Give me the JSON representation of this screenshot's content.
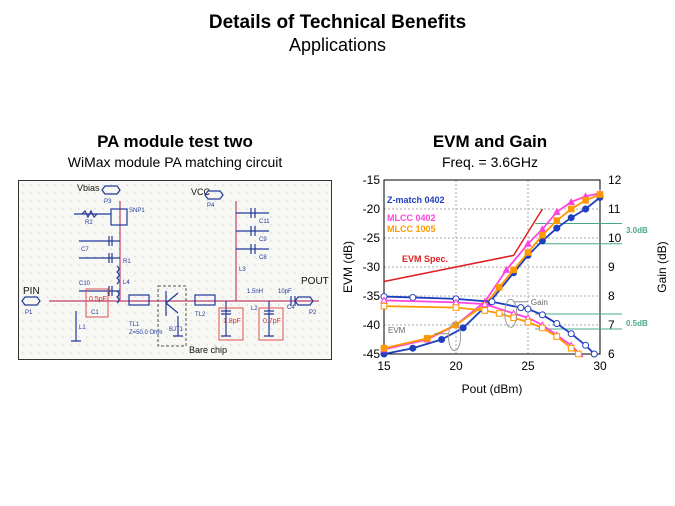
{
  "slide": {
    "title": "Details of Technical Benefits",
    "subtitle": "Applications"
  },
  "left": {
    "title": "PA module test two",
    "subtitle": "WiMax module PA matching circuit",
    "circuit": {
      "vbias": "Vbias",
      "vcc": "VCC",
      "pin": "PIN",
      "pout": "POUT",
      "bare_chip": "Bare chip",
      "highlighted": [
        "0.5pF",
        "1.8pF",
        "0.7pF"
      ],
      "inductor": "1.5nH",
      "cap_out": "10pF",
      "labels": [
        "P1",
        "P2",
        "P3",
        "P4",
        "R1",
        "R2",
        "L1",
        "L2",
        "L3",
        "L4",
        "C1",
        "C4",
        "C7",
        "C8",
        "C9",
        "C10",
        "C11",
        "TL1",
        "TL2",
        "Z=50.0 Ohm",
        "SNP1",
        "BJT1"
      ]
    }
  },
  "right": {
    "title": "EVM and Gain",
    "subtitle": "Freq. = 3.6GHz"
  },
  "chart_data": {
    "type": "line",
    "xlabel": "Pout (dBm)",
    "ylabel": "EVM (dB)",
    "y2label": "Gain (dB)",
    "xlim": [
      15,
      30
    ],
    "ylim": [
      -45,
      -15
    ],
    "y2lim": [
      6,
      12
    ],
    "xticks": [
      15,
      20,
      25,
      30
    ],
    "yticks": [
      -15,
      -20,
      -25,
      -30,
      -35,
      -40,
      -45
    ],
    "y2ticks": [
      12,
      11,
      10,
      9,
      8,
      7,
      6
    ],
    "grid": true,
    "legend_placement": "top-left",
    "colors": {
      "Z-match 0402": "#1f3fbf",
      "MLCC 0402": "#ff44dd",
      "MLCC 1005": "#ff9900",
      "EVM Spec.": "#e02020",
      "ref": "#4aa88a"
    },
    "series": [
      {
        "name": "Z-match 0402",
        "axis": "EVM",
        "x": [
          15,
          17,
          19,
          20.5,
          22.3,
          24,
          25,
          26,
          27,
          28,
          29,
          30
        ],
        "values": [
          -45,
          -44,
          -42.5,
          -40.5,
          -36.2,
          -31,
          -28,
          -25.5,
          -23.3,
          -21.5,
          -20,
          -18
        ]
      },
      {
        "name": "MLCC 0402",
        "axis": "EVM",
        "x": [
          15,
          18,
          20,
          22,
          23.5,
          25,
          26,
          27,
          28,
          29,
          30
        ],
        "values": [
          -44.2,
          -42.5,
          -40,
          -36,
          -30.5,
          -26,
          -23.5,
          -20.5,
          -18.8,
          -17.8,
          -17.3
        ]
      },
      {
        "name": "MLCC 1005",
        "axis": "EVM",
        "x": [
          15,
          18,
          20,
          22,
          23,
          24,
          25,
          26,
          27,
          28,
          29,
          30
        ],
        "values": [
          -44,
          -42.3,
          -40,
          -36.5,
          -33.5,
          -30.5,
          -27.5,
          -24.5,
          -22,
          -20,
          -18.5,
          -17.5
        ]
      },
      {
        "name": "Z-match 0402",
        "axis": "Gain",
        "x": [
          15,
          17,
          20,
          22.5,
          24.5,
          25,
          26,
          27,
          28,
          29,
          29.6
        ],
        "values": [
          7.98,
          7.95,
          7.9,
          7.8,
          7.6,
          7.55,
          7.35,
          7.05,
          6.7,
          6.3,
          6
        ]
      },
      {
        "name": "MLCC 0402",
        "axis": "Gain",
        "x": [
          15,
          20,
          22,
          24,
          25,
          26,
          27,
          28,
          28.6
        ],
        "values": [
          7.85,
          7.78,
          7.72,
          7.4,
          7.25,
          7.0,
          6.65,
          6.3,
          6
        ]
      },
      {
        "name": "MLCC 1005",
        "axis": "Gain",
        "x": [
          15,
          20,
          22,
          23,
          24,
          25,
          26,
          27,
          28,
          28.5
        ],
        "values": [
          7.65,
          7.6,
          7.5,
          7.4,
          7.25,
          7.1,
          6.9,
          6.6,
          6.2,
          6
        ]
      },
      {
        "name": "EVM Spec.",
        "axis": "EVM",
        "x": [
          15,
          24,
          26
        ],
        "values": [
          -32.5,
          -28,
          -20
        ]
      }
    ],
    "annotations": {
      "gain_arrow": "Gain",
      "evm_arrow": "EVM",
      "delta_high": "3.0dB",
      "delta_low": "0.5dB"
    },
    "ref_lines_gain": [
      10.5,
      9.8,
      7.38,
      6.86
    ]
  }
}
